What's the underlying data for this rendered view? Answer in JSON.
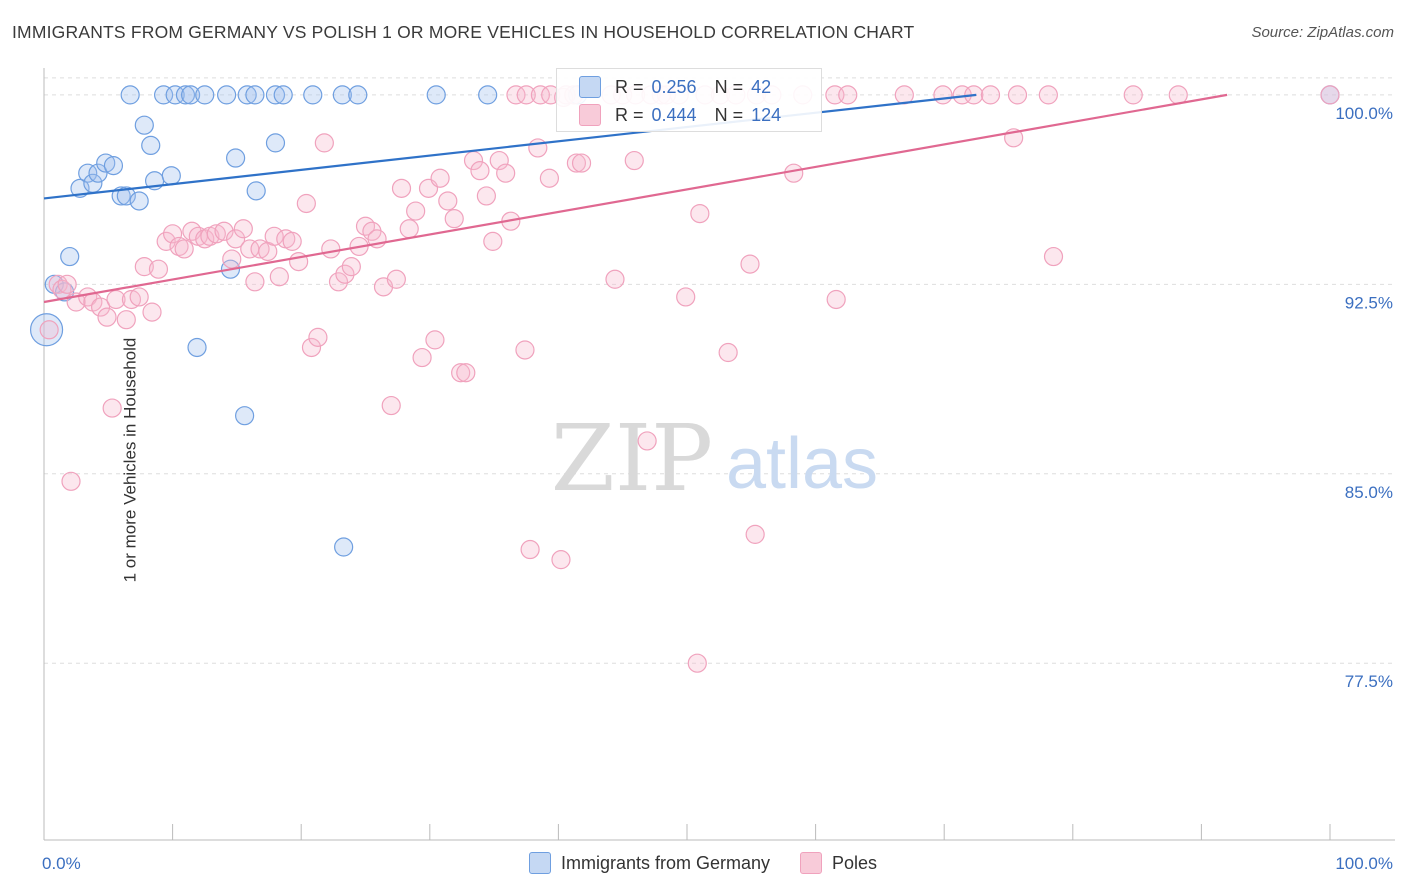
{
  "title": "IMMIGRANTS FROM GERMANY VS POLISH 1 OR MORE VEHICLES IN HOUSEHOLD CORRELATION CHART",
  "source": "Source: ZipAtlas.com",
  "watermark": {
    "zip": "ZIP",
    "atlas": "atlas"
  },
  "colors": {
    "blue": "#6f9fe0",
    "blue_line": "#2f72c8",
    "pink": "#f0a2bd",
    "pink_line": "#e06891",
    "axis_text": "#3b6fc0"
  },
  "stats": {
    "r_label": "R =",
    "n_label": "N =",
    "blue": {
      "r": "0.256",
      "n": "42"
    },
    "pink": {
      "r": "0.444",
      "n": "124"
    }
  },
  "chart_data": {
    "type": "scatter",
    "title": "IMMIGRANTS FROM GERMANY VS POLISH 1 OR MORE VEHICLES IN HOUSEHOLD CORRELATION CHART",
    "xlabel": "",
    "ylabel": "1 or more Vehicles in Household",
    "xlim": [
      0,
      100
    ],
    "ylim": [
      70.5,
      101.5
    ],
    "x_tick_labels": [
      "0.0%",
      "100.0%"
    ],
    "y_ticks": [
      100.0,
      92.5,
      85.0,
      77.5
    ],
    "y_tick_labels": [
      "100.0%",
      "92.5%",
      "85.0%",
      "77.5%"
    ],
    "legend": [
      "Immigrants from Germany",
      "Poles"
    ],
    "series": [
      {
        "name": "Immigrants from Germany",
        "trend": {
          "x": [
            0,
            72.5
          ],
          "y": [
            95.9,
            100.0
          ]
        },
        "points": [
          [
            0.2,
            90.7
          ],
          [
            0.8,
            92.5
          ],
          [
            1.6,
            92.2
          ],
          [
            2.0,
            93.6
          ],
          [
            2.8,
            96.3
          ],
          [
            3.4,
            96.9
          ],
          [
            3.8,
            96.5
          ],
          [
            4.2,
            96.9
          ],
          [
            4.8,
            97.3
          ],
          [
            5.4,
            97.2
          ],
          [
            6.0,
            96.0
          ],
          [
            6.4,
            96.0
          ],
          [
            7.4,
            95.8
          ],
          [
            7.8,
            98.8
          ],
          [
            8.3,
            98.0
          ],
          [
            8.6,
            96.6
          ],
          [
            9.9,
            96.8
          ],
          [
            11.9,
            90.0
          ],
          [
            14.5,
            93.1
          ],
          [
            14.9,
            97.5
          ],
          [
            16.5,
            96.2
          ],
          [
            18.0,
            98.1
          ],
          [
            15.6,
            87.3
          ],
          [
            23.3,
            82.1
          ],
          [
            6.7,
            100.0
          ],
          [
            9.3,
            100.0
          ],
          [
            10.2,
            100.0
          ],
          [
            11.0,
            100.0
          ],
          [
            11.4,
            100.0
          ],
          [
            12.5,
            100.0
          ],
          [
            14.2,
            100.0
          ],
          [
            15.8,
            100.0
          ],
          [
            16.4,
            100.0
          ],
          [
            18.0,
            100.0
          ],
          [
            18.6,
            100.0
          ],
          [
            20.9,
            100.0
          ],
          [
            23.2,
            100.0
          ],
          [
            24.4,
            100.0
          ],
          [
            30.5,
            100.0
          ],
          [
            34.5,
            100.0
          ],
          [
            41.5,
            100.0
          ],
          [
            100.0,
            100.0
          ]
        ]
      },
      {
        "name": "Poles",
        "trend": {
          "x": [
            0,
            92.0
          ],
          "y": [
            91.8,
            100.0
          ]
        },
        "points": [
          [
            0.4,
            90.7
          ],
          [
            1.1,
            92.5
          ],
          [
            1.4,
            92.3
          ],
          [
            1.8,
            92.5
          ],
          [
            2.5,
            91.8
          ],
          [
            3.4,
            92.0
          ],
          [
            3.8,
            91.8
          ],
          [
            4.4,
            91.6
          ],
          [
            4.9,
            91.2
          ],
          [
            5.3,
            87.6
          ],
          [
            5.6,
            91.9
          ],
          [
            6.4,
            91.1
          ],
          [
            6.8,
            91.9
          ],
          [
            7.4,
            92.0
          ],
          [
            7.8,
            93.2
          ],
          [
            8.4,
            91.4
          ],
          [
            8.9,
            93.1
          ],
          [
            9.5,
            94.2
          ],
          [
            10.0,
            94.5
          ],
          [
            10.5,
            94.0
          ],
          [
            10.9,
            93.9
          ],
          [
            11.5,
            94.6
          ],
          [
            12.0,
            94.4
          ],
          [
            12.5,
            94.3
          ],
          [
            12.9,
            94.4
          ],
          [
            13.4,
            94.5
          ],
          [
            14.0,
            94.6
          ],
          [
            14.6,
            93.5
          ],
          [
            14.9,
            94.3
          ],
          [
            15.5,
            94.7
          ],
          [
            16.0,
            93.9
          ],
          [
            16.4,
            92.6
          ],
          [
            16.8,
            93.9
          ],
          [
            17.4,
            93.8
          ],
          [
            17.9,
            94.4
          ],
          [
            18.3,
            92.8
          ],
          [
            18.8,
            94.3
          ],
          [
            19.3,
            94.2
          ],
          [
            19.8,
            93.4
          ],
          [
            20.4,
            95.7
          ],
          [
            20.8,
            90.0
          ],
          [
            21.3,
            90.4
          ],
          [
            21.8,
            98.1
          ],
          [
            22.3,
            93.9
          ],
          [
            22.9,
            92.6
          ],
          [
            23.4,
            92.9
          ],
          [
            23.9,
            93.2
          ],
          [
            24.5,
            94.0
          ],
          [
            25.0,
            94.8
          ],
          [
            25.5,
            94.6
          ],
          [
            25.9,
            94.3
          ],
          [
            26.4,
            92.4
          ],
          [
            27.0,
            87.7
          ],
          [
            27.4,
            92.7
          ],
          [
            27.8,
            96.3
          ],
          [
            28.4,
            94.7
          ],
          [
            28.9,
            95.4
          ],
          [
            29.4,
            89.6
          ],
          [
            29.9,
            96.3
          ],
          [
            30.4,
            90.3
          ],
          [
            30.8,
            96.7
          ],
          [
            31.4,
            95.8
          ],
          [
            31.9,
            95.1
          ],
          [
            32.4,
            89.0
          ],
          [
            32.8,
            89.0
          ],
          [
            33.4,
            97.4
          ],
          [
            33.9,
            97.0
          ],
          [
            34.4,
            96.0
          ],
          [
            34.9,
            94.2
          ],
          [
            35.4,
            97.4
          ],
          [
            35.9,
            96.9
          ],
          [
            36.3,
            95.0
          ],
          [
            37.4,
            89.9
          ],
          [
            38.4,
            97.9
          ],
          [
            39.3,
            96.7
          ],
          [
            40.4,
            99.9
          ],
          [
            41.4,
            97.3
          ],
          [
            41.8,
            97.3
          ],
          [
            44.4,
            92.7
          ],
          [
            45.9,
            97.4
          ],
          [
            46.9,
            86.3
          ],
          [
            48.0,
            100.0
          ],
          [
            49.9,
            92.0
          ],
          [
            51.0,
            95.3
          ],
          [
            53.2,
            89.8
          ],
          [
            54.9,
            93.3
          ],
          [
            55.3,
            82.6
          ],
          [
            58.3,
            96.9
          ],
          [
            61.6,
            91.9
          ],
          [
            69.9,
            100.0
          ],
          [
            78.5,
            93.6
          ],
          [
            75.4,
            98.3
          ],
          [
            37.8,
            82.0
          ],
          [
            40.2,
            81.6
          ],
          [
            50.8,
            77.5
          ],
          [
            2.1,
            84.7
          ],
          [
            36.7,
            100.0
          ],
          [
            37.5,
            100.0
          ],
          [
            38.6,
            100.0
          ],
          [
            39.4,
            100.0
          ],
          [
            40.6,
            100.0
          ],
          [
            41.2,
            100.0
          ],
          [
            44.1,
            100.0
          ],
          [
            45.0,
            100.0
          ],
          [
            46.0,
            100.0
          ],
          [
            47.2,
            100.0
          ],
          [
            48.4,
            100.0
          ],
          [
            49.4,
            100.0
          ],
          [
            51.4,
            100.0
          ],
          [
            52.6,
            100.0
          ],
          [
            53.8,
            100.0
          ],
          [
            55.4,
            100.0
          ],
          [
            56.6,
            100.0
          ],
          [
            59.0,
            100.0
          ],
          [
            61.5,
            100.0
          ],
          [
            62.5,
            100.0
          ],
          [
            66.9,
            100.0
          ],
          [
            71.4,
            100.0
          ],
          [
            72.3,
            100.0
          ],
          [
            73.6,
            100.0
          ],
          [
            75.7,
            100.0
          ],
          [
            78.1,
            100.0
          ],
          [
            84.7,
            100.0
          ],
          [
            88.2,
            100.0
          ],
          [
            100.0,
            100.0
          ]
        ]
      }
    ]
  }
}
